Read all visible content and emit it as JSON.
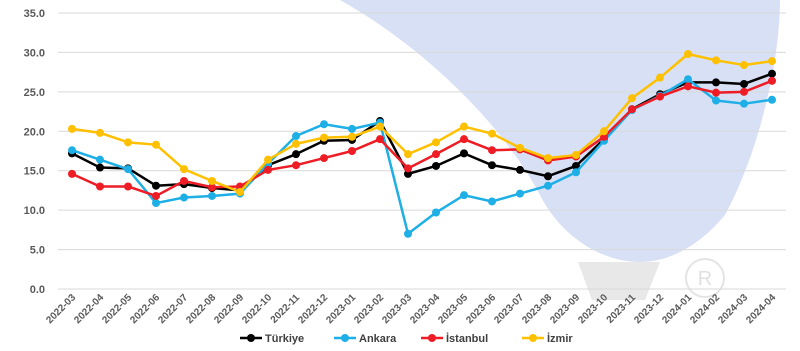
{
  "chart_data": {
    "type": "line",
    "title": "",
    "xlabel": "",
    "ylabel": "",
    "ylim": [
      0,
      35
    ],
    "yticks": [
      "0.0",
      "5.0",
      "10.0",
      "15.0",
      "20.0",
      "25.0",
      "30.0",
      "35.0"
    ],
    "ytick_values": [
      0,
      5,
      10,
      15,
      20,
      25,
      30,
      35
    ],
    "grid": "horizontal",
    "legend_position": "bottom",
    "categories": [
      "2022-03",
      "2022-04",
      "2022-05",
      "2022-06",
      "2022-07",
      "2022-08",
      "2022-09",
      "2022-10",
      "2022-11",
      "2022-12",
      "2023-01",
      "2023-02",
      "2023-03",
      "2023-04",
      "2023-05",
      "2023-06",
      "2023-07",
      "2023-08",
      "2023-09",
      "2023-10",
      "2023-11",
      "2023-12",
      "2024-01",
      "2024-02",
      "2024-03",
      "2024-04"
    ],
    "series": [
      {
        "name": "Türkiye",
        "color": "#000000",
        "values": [
          17.2,
          15.4,
          15.3,
          13.1,
          13.3,
          12.8,
          12.5,
          15.7,
          17.1,
          18.8,
          18.9,
          21.3,
          14.6,
          15.6,
          17.2,
          15.7,
          15.1,
          14.3,
          15.6,
          19.0,
          22.8,
          24.7,
          26.2,
          26.2,
          26.0,
          27.3
        ]
      },
      {
        "name": "Ankara",
        "color": "#1EAFE6",
        "values": [
          17.6,
          16.4,
          15.2,
          10.9,
          11.6,
          11.8,
          12.1,
          15.9,
          19.4,
          20.9,
          20.3,
          21.1,
          7.0,
          9.7,
          11.9,
          11.1,
          12.1,
          13.1,
          14.8,
          18.8,
          22.7,
          24.5,
          26.6,
          23.9,
          23.5,
          24.0
        ]
      },
      {
        "name": "İstanbul",
        "color": "#EE1C25",
        "values": [
          14.6,
          13.0,
          13.0,
          11.8,
          13.7,
          12.9,
          13.0,
          15.1,
          15.7,
          16.6,
          17.5,
          19.0,
          15.3,
          17.1,
          19.0,
          17.6,
          17.7,
          16.3,
          16.8,
          19.3,
          22.8,
          24.4,
          25.7,
          24.9,
          25.0,
          26.4
        ]
      },
      {
        "name": "İzmir",
        "color": "#FFC000",
        "values": [
          20.3,
          19.8,
          18.6,
          18.3,
          15.2,
          13.7,
          12.3,
          16.4,
          18.4,
          19.2,
          19.3,
          20.6,
          17.1,
          18.6,
          20.6,
          19.7,
          17.9,
          16.6,
          17.0,
          20.0,
          24.2,
          26.8,
          29.8,
          29.0,
          28.4,
          28.9
        ]
      }
    ]
  }
}
